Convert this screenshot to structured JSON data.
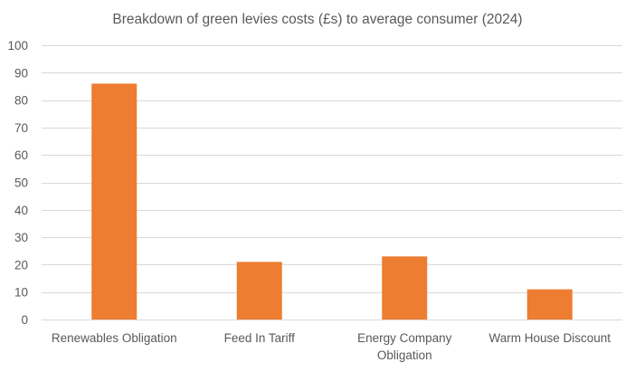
{
  "chart_data": {
    "type": "bar",
    "title": "Breakdown of green levies costs (£s) to average consumer (2024)",
    "categories": [
      [
        "Renewables Obligation"
      ],
      [
        "Feed In Tariff"
      ],
      [
        "Energy Company",
        "Obligation"
      ],
      [
        "Warm House Discount"
      ]
    ],
    "values": [
      86,
      21,
      23,
      11
    ],
    "ylim": [
      0,
      100
    ],
    "yticks": [
      0,
      10,
      20,
      30,
      40,
      50,
      60,
      70,
      80,
      90,
      100
    ],
    "xlabel": "",
    "ylabel": "",
    "grid": true,
    "legend": "none",
    "bar_color": "#ED7D31",
    "grid_color": "#D9D9D9",
    "text_color": "#595959"
  }
}
